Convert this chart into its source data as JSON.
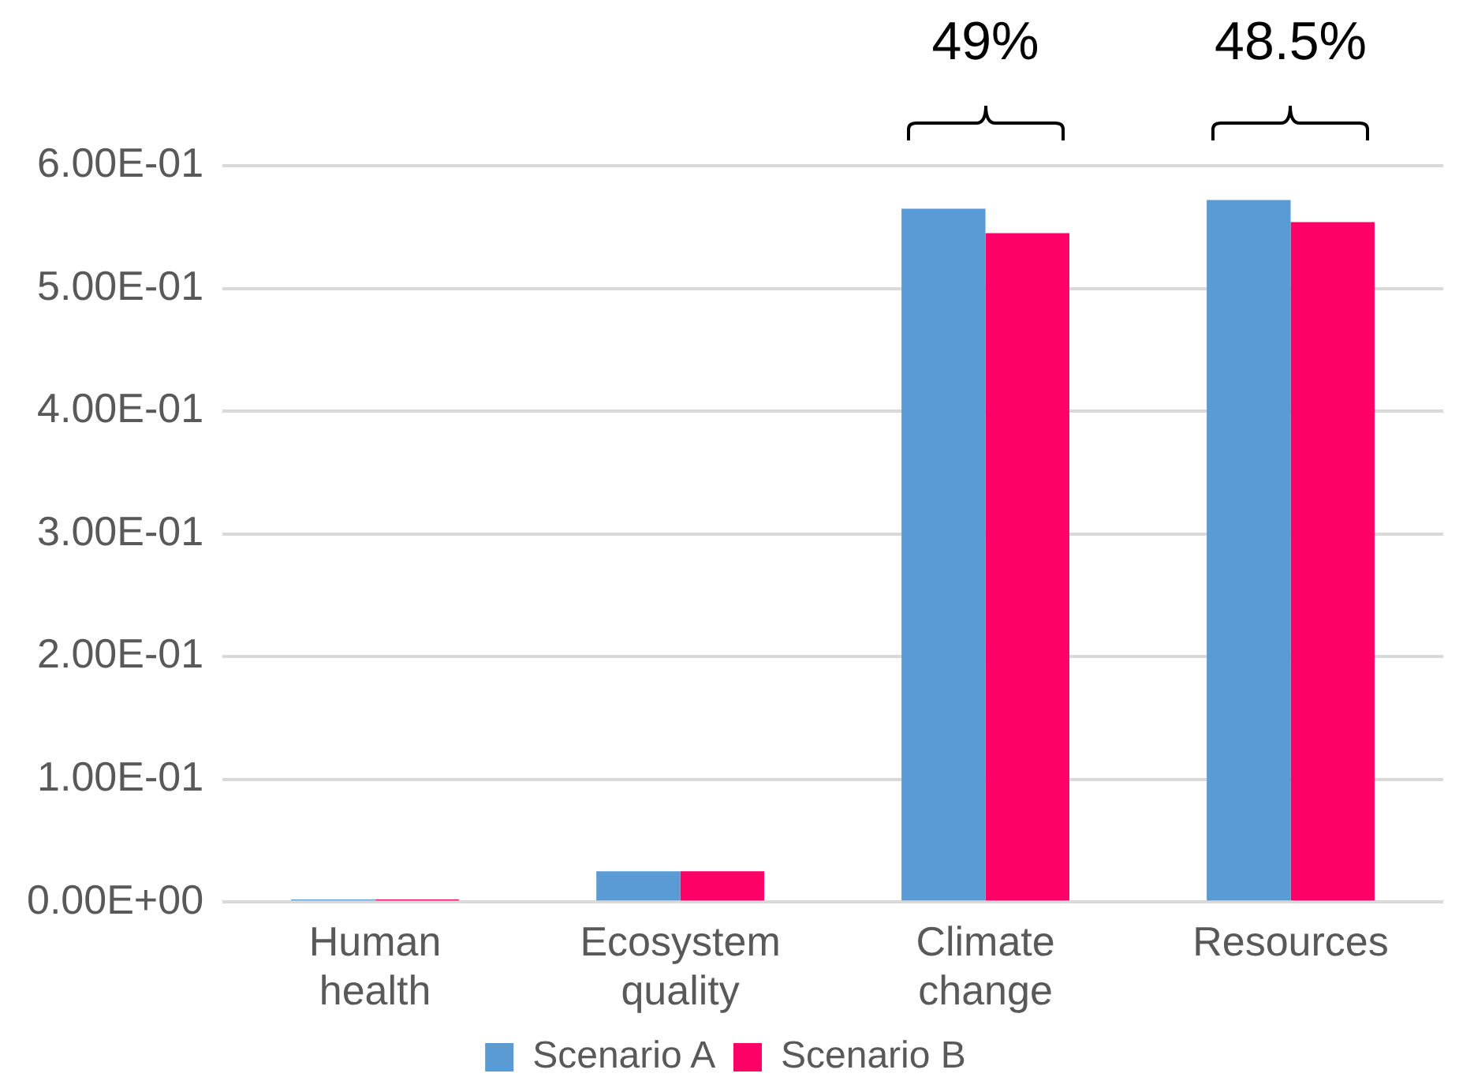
{
  "chart_data": {
    "type": "bar",
    "categories": [
      "Human health",
      "Ecosystem quality",
      "Climate change",
      "Resources"
    ],
    "series": [
      {
        "name": "Scenario A",
        "color": "#5b9bd5",
        "values": [
          0.002,
          0.025,
          0.565,
          0.572
        ]
      },
      {
        "name": "Scenario B",
        "color": "#ff0066",
        "values": [
          0.002,
          0.025,
          0.545,
          0.554
        ]
      }
    ],
    "ylim": [
      0,
      0.6
    ],
    "yticks": [
      {
        "value": 0,
        "label": "0.00E+00"
      },
      {
        "value": 0.1,
        "label": "1.00E-01"
      },
      {
        "value": 0.2,
        "label": "2.00E-01"
      },
      {
        "value": 0.3,
        "label": "3.00E-01"
      },
      {
        "value": 0.4,
        "label": "4.00E-01"
      },
      {
        "value": 0.5,
        "label": "5.00E-01"
      },
      {
        "value": 0.6,
        "label": "6.00E-01"
      }
    ],
    "grid": "y",
    "legend": "bottom",
    "annotations": [
      "49%",
      "48.5%"
    ]
  }
}
